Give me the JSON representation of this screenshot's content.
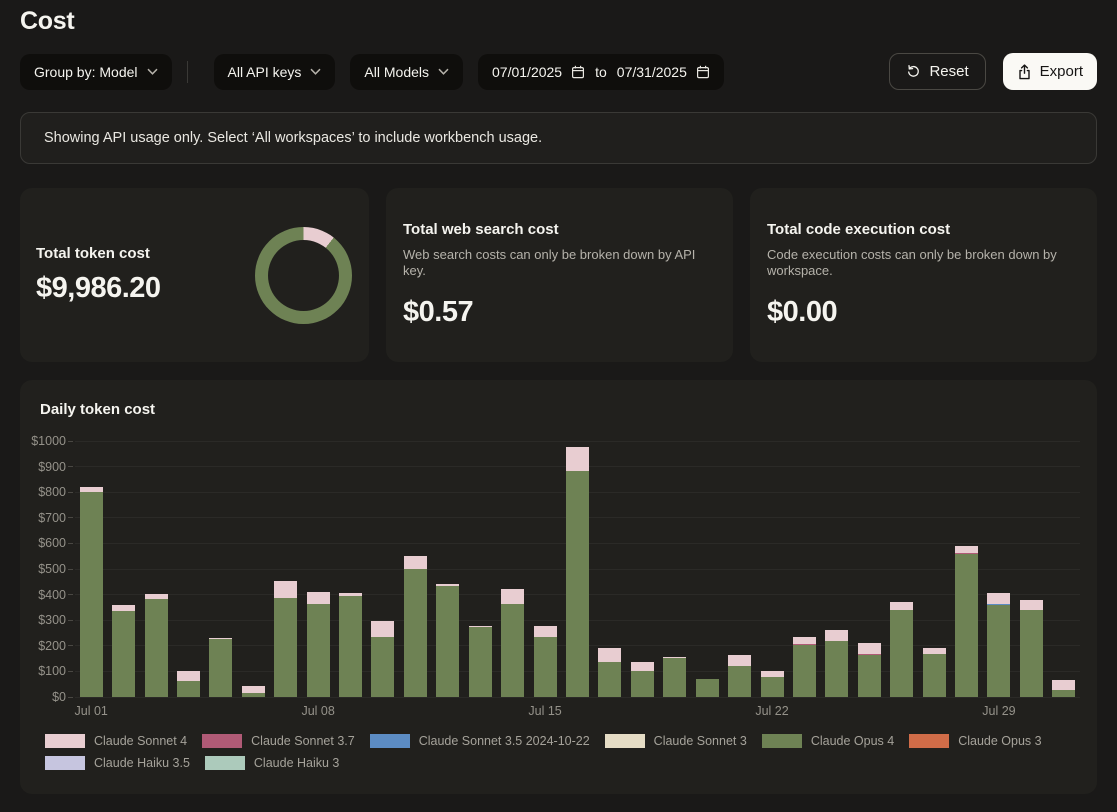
{
  "page": {
    "title": "Cost"
  },
  "filters": {
    "group_by_label": "Group by: Model",
    "api_keys_label": "All API keys",
    "models_label": "All Models",
    "date_from": "07/01/2025",
    "to_label": "to",
    "date_to": "07/31/2025",
    "reset_label": "Reset",
    "export_label": "Export"
  },
  "banner": {
    "text": "Showing API usage only. Select ‘All workspaces’ to include workbench usage."
  },
  "cards": {
    "token": {
      "title": "Total token cost",
      "value": "$9,986.20",
      "donut": {
        "segments": [
          {
            "label": "Claude Sonnet 4",
            "color": "#e8cdd1",
            "pct": 10.7
          },
          {
            "label": "Claude Opus 4",
            "color": "#6e8254",
            "pct": 89.3
          }
        ]
      }
    },
    "web": {
      "title": "Total web search cost",
      "description": "Web search costs can only be broken down by API key.",
      "value": "$0.57"
    },
    "code": {
      "title": "Total code execution cost",
      "description": "Code execution costs can only be broken down by workspace.",
      "value": "$0.00"
    }
  },
  "chart_data": {
    "type": "bar",
    "stacked": true,
    "title": "Daily token cost",
    "x": [
      "Jul 01",
      "Jul 02",
      "Jul 03",
      "Jul 04",
      "Jul 05",
      "Jul 06",
      "Jul 07",
      "Jul 08",
      "Jul 09",
      "Jul 10",
      "Jul 11",
      "Jul 12",
      "Jul 13",
      "Jul 14",
      "Jul 15",
      "Jul 16",
      "Jul 17",
      "Jul 18",
      "Jul 19",
      "Jul 20",
      "Jul 21",
      "Jul 22",
      "Jul 23",
      "Jul 24",
      "Jul 25",
      "Jul 26",
      "Jul 27",
      "Jul 28",
      "Jul 29",
      "Jul 30",
      "Jul 31"
    ],
    "x_ticks": [
      {
        "index": 0,
        "label": "Jul 01"
      },
      {
        "index": 7,
        "label": "Jul 08"
      },
      {
        "index": 14,
        "label": "Jul 15"
      },
      {
        "index": 21,
        "label": "Jul 22"
      },
      {
        "index": 28,
        "label": "Jul 29"
      }
    ],
    "ylim": [
      0,
      1000
    ],
    "y_tick_labels": [
      "$0",
      "$100",
      "$200",
      "$300",
      "$400",
      "$500",
      "$600",
      "$700",
      "$800",
      "$900",
      "$1000"
    ],
    "grid": true,
    "legend_position": "bottom",
    "series": [
      {
        "name": "Claude Sonnet 4",
        "color": "#e8cdd1",
        "values": [
          20,
          23,
          19,
          40,
          5,
          28,
          64,
          45,
          12,
          64,
          52,
          5,
          4,
          60,
          44,
          93,
          55,
          37,
          5,
          0,
          43,
          23,
          25,
          43,
          44,
          30,
          23,
          29,
          41,
          37,
          36
        ]
      },
      {
        "name": "Claude Sonnet 3.7",
        "color": "#b05a76",
        "values": [
          0,
          0,
          0,
          0,
          0,
          0,
          0,
          0,
          0,
          0,
          0,
          0,
          0,
          0,
          0,
          0,
          0,
          0,
          0,
          0,
          0,
          0,
          4,
          0,
          4,
          0,
          0,
          4,
          0,
          0,
          0
        ]
      },
      {
        "name": "Claude Sonnet 3.5 2024-10-22",
        "color": "#5c8cc4",
        "values": [
          0,
          0,
          0,
          0,
          0,
          0,
          0,
          0,
          0,
          0,
          0,
          0,
          0,
          0,
          0,
          0,
          0,
          0,
          0,
          0,
          0,
          0,
          0,
          0,
          0,
          0,
          0,
          0,
          4,
          0,
          0
        ]
      },
      {
        "name": "Claude Sonnet 3",
        "color": "#e5dcc5",
        "values": [
          0,
          0,
          0,
          0,
          0,
          0,
          0,
          0,
          0,
          0,
          0,
          0,
          0,
          0,
          0,
          0,
          0,
          0,
          0,
          0,
          0,
          0,
          0,
          0,
          0,
          0,
          0,
          0,
          0,
          0,
          0
        ]
      },
      {
        "name": "Claude Opus 4",
        "color": "#6e8254",
        "values": [
          800,
          335,
          383,
          63,
          225,
          15,
          388,
          365,
          393,
          234,
          500,
          435,
          273,
          363,
          233,
          882,
          135,
          100,
          152,
          70,
          120,
          77,
          204,
          220,
          165,
          341,
          168,
          559,
          361,
          341,
          29
        ]
      },
      {
        "name": "Claude Opus 3",
        "color": "#d06c48",
        "values": [
          0,
          0,
          0,
          0,
          0,
          0,
          0,
          0,
          0,
          0,
          0,
          0,
          0,
          0,
          0,
          0,
          0,
          0,
          0,
          0,
          0,
          0,
          0,
          0,
          0,
          0,
          0,
          0,
          0,
          0,
          0
        ]
      },
      {
        "name": "Claude Haiku 3.5",
        "color": "#c6c5df",
        "values": [
          0,
          0,
          0,
          0,
          0,
          0,
          0,
          0,
          0,
          0,
          0,
          0,
          0,
          0,
          0,
          0,
          0,
          0,
          0,
          0,
          0,
          0,
          0,
          0,
          0,
          0,
          0,
          0,
          0,
          0,
          0
        ]
      },
      {
        "name": "Claude Haiku 3",
        "color": "#accabb",
        "values": [
          0,
          0,
          0,
          0,
          0,
          0,
          0,
          0,
          0,
          0,
          0,
          0,
          0,
          0,
          0,
          0,
          0,
          0,
          0,
          0,
          0,
          0,
          0,
          0,
          0,
          0,
          0,
          0,
          0,
          0,
          0
        ]
      }
    ],
    "stack_order_bottom_to_top": [
      "Claude Opus 4",
      "Claude Sonnet 3.7",
      "Claude Sonnet 3.5 2024-10-22",
      "Claude Sonnet 4"
    ]
  }
}
